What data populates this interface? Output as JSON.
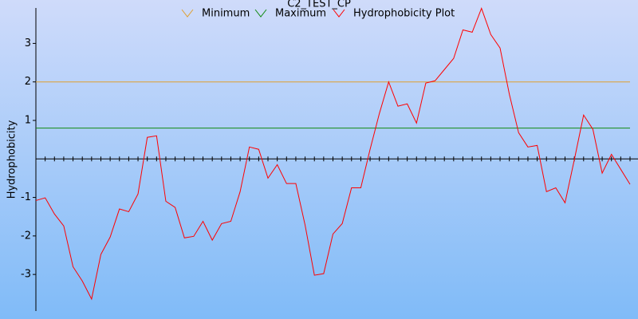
{
  "chart_data": {
    "type": "line",
    "title": "C2_TEST_CP",
    "y_label": "Hydrophobicity",
    "ylim": [
      -3.95,
      3.92
    ],
    "yticks": [
      -3,
      -2,
      -1,
      1,
      2,
      3
    ],
    "series": [
      {
        "name": "Minimum",
        "color": "#e0a030",
        "value": 2
      },
      {
        "name": "Maximum",
        "color": "#108a10",
        "value": 0.8
      },
      {
        "name": "Hydrophobicity Plot",
        "color": "#ff0000",
        "values": [
          -1.08,
          -1.01,
          -1.43,
          -1.74,
          -2.8,
          -3.17,
          -3.64,
          -2.48,
          -2.03,
          -1.3,
          -1.37,
          -0.91,
          0.56,
          0.6,
          -1.1,
          -1.26,
          -2.05,
          -2.01,
          -1.62,
          -2.11,
          -1.68,
          -1.62,
          -0.85,
          0.31,
          0.25,
          -0.5,
          -0.15,
          -0.64,
          -0.64,
          -1.72,
          -3.02,
          -2.98,
          -1.95,
          -1.68,
          -0.75,
          -0.75,
          0.25,
          1.18,
          2.0,
          1.37,
          1.43,
          0.93,
          1.97,
          2.03,
          2.32,
          2.61,
          3.35,
          3.29,
          3.91,
          3.23,
          2.88,
          1.68,
          0.68,
          0.31,
          0.35,
          -0.85,
          -0.75,
          -1.14,
          -0.02,
          1.14,
          0.77,
          -0.37,
          0.12,
          -0.27,
          -0.66
        ]
      }
    ]
  }
}
